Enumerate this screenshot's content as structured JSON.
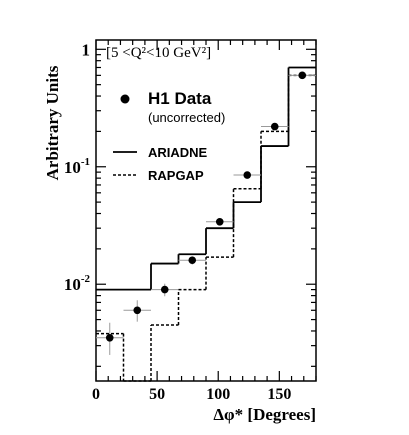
{
  "chart_data": {
    "type": "scatter",
    "ylabel": "Arbitrary Units",
    "xlabel": "Δφ* [Degrees]",
    "range_label": "[5 <Q²<10 GeV²]",
    "xlim": [
      0,
      180
    ],
    "ylim": [
      0.0015,
      1.2
    ],
    "y_scale": "log",
    "x_ticks": [
      "0",
      "50",
      "100",
      "150"
    ],
    "x_tick_values": [
      0,
      50,
      100,
      150
    ],
    "y_tick_labels": [
      {
        "base": "1",
        "exp": "",
        "value": 1
      },
      {
        "base": "10",
        "exp": "-1",
        "value": 0.1
      },
      {
        "base": "10",
        "exp": "-2",
        "value": 0.01
      }
    ],
    "legend": {
      "data_label": "H1 Data",
      "data_sublabel": "(uncorrected)",
      "placement": "top-left"
    },
    "bin_edges": [
      0,
      22.5,
      45,
      67.5,
      90,
      112.5,
      135,
      157.5,
      180
    ],
    "series": [
      {
        "name": "H1 Data",
        "style": "points",
        "x": [
          11.25,
          33.75,
          56.25,
          78.75,
          101.25,
          123.75,
          146.25,
          168.75
        ],
        "y": [
          0.0035,
          0.006,
          0.009,
          0.016,
          0.034,
          0.085,
          0.22,
          0.6
        ],
        "yerr_low": [
          0.0025,
          0.0048,
          0.0079,
          0.0147,
          0.0325,
          0.082,
          0.214,
          0.59
        ],
        "yerr_high": [
          0.0047,
          0.0073,
          0.0101,
          0.0173,
          0.0355,
          0.088,
          0.226,
          0.61
        ]
      },
      {
        "name": "ARIADNE",
        "style": "solid",
        "values": [
          0.009,
          0.009,
          0.015,
          0.018,
          0.03,
          0.05,
          0.15,
          0.7
        ]
      },
      {
        "name": "RAPGAP",
        "style": "dashed",
        "values": [
          0.0038,
          0.0015,
          0.0045,
          0.009,
          0.017,
          0.065,
          0.2,
          0.6
        ]
      }
    ],
    "colors": {
      "ink": "#000000",
      "background": "#ffffff",
      "error_bar": "#9a9a9a"
    }
  }
}
